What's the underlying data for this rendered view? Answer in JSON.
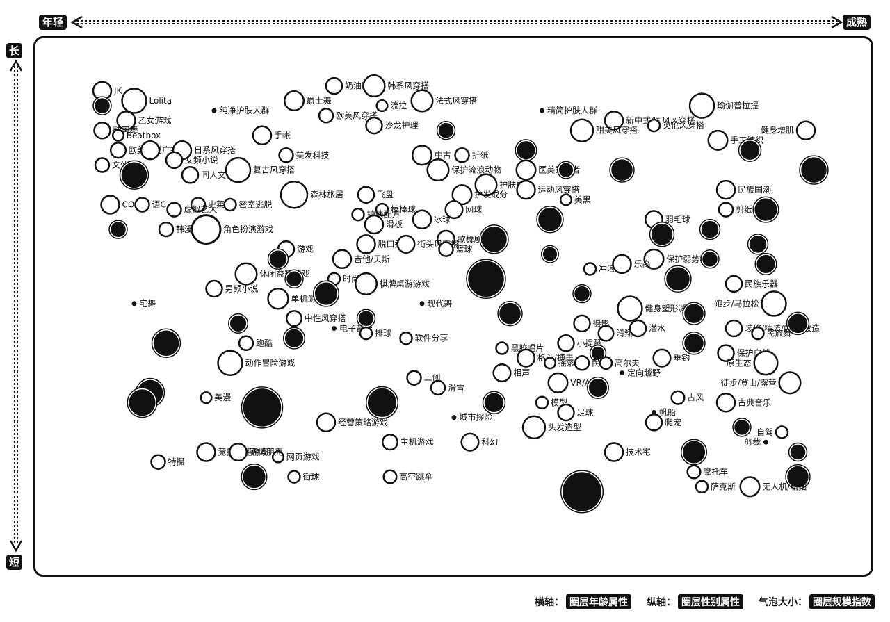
{
  "axes": {
    "x_start": "年轻",
    "x_end": "成熟",
    "y_start": "长",
    "y_end": "短"
  },
  "legend": {
    "x_key": "横轴：",
    "x_value": "圈层年龄属性",
    "y_key": "纵轴：",
    "y_value": "圈层性别属性",
    "size_key": "气泡大小：",
    "size_value": "圈层规模指数"
  },
  "colors": {
    "ink": "#111111",
    "background": "#ffffff"
  },
  "chart_data": {
    "type": "scatter",
    "title": "",
    "xlabel": "",
    "ylabel": "",
    "xlim": [
      0,
      100
    ],
    "ylim": [
      0,
      100
    ],
    "grid": false,
    "legend_position": "bottom-right",
    "points": [
      {
        "label": "JK",
        "x": 6,
        "y": 94,
        "size": 1.2
      },
      {
        "label": "Lolita",
        "x": 10,
        "y": 92,
        "size": 1.8
      },
      {
        "label": "",
        "x": 6,
        "y": 91,
        "size": 1,
        "dark": true
      },
      {
        "label": "乙女游戏",
        "x": 9,
        "y": 88,
        "size": 1.2
      },
      {
        "label": "韩国舞",
        "x": 6,
        "y": 86,
        "size": 1
      },
      {
        "label": "Beatbox",
        "x": 8,
        "y": 85,
        "size": 0.5
      },
      {
        "label": "欧美小说",
        "x": 8,
        "y": 82,
        "size": 0.9
      },
      {
        "label": "广播剧",
        "x": 12,
        "y": 82,
        "size": 1.2
      },
      {
        "label": "日系风穿搭",
        "x": 16,
        "y": 82,
        "size": 1.2
      },
      {
        "label": "文件",
        "x": 6,
        "y": 79,
        "size": 0.8
      },
      {
        "label": "女频小说",
        "x": 15,
        "y": 80,
        "size": 1
      },
      {
        "label": "",
        "x": 10,
        "y": 77,
        "size": 2,
        "dark": true
      },
      {
        "label": "同人文化",
        "x": 17,
        "y": 77,
        "size": 1
      },
      {
        "label": "复古风穿搭",
        "x": 23,
        "y": 78,
        "size": 1.8
      },
      {
        "label": "COS",
        "x": 7,
        "y": 71,
        "size": 1.2
      },
      {
        "label": "语C",
        "x": 11,
        "y": 71,
        "size": 0.8
      },
      {
        "label": "史莱姆",
        "x": 18,
        "y": 71,
        "size": 0.8
      },
      {
        "label": "密室逃脱",
        "x": 22,
        "y": 71,
        "size": 0.6
      },
      {
        "label": "虚拟艺人",
        "x": 15,
        "y": 70,
        "size": 0.8
      },
      {
        "label": "",
        "x": 8,
        "y": 66,
        "size": 1,
        "dark": true
      },
      {
        "label": "韩漫",
        "x": 14,
        "y": 66,
        "size": 0.8
      },
      {
        "label": "角色扮演游戏",
        "x": 19,
        "y": 66,
        "size": 2.2
      },
      {
        "label": "纯净护肤人群",
        "x": 20,
        "y": 90,
        "size": 0.4
      },
      {
        "label": "爵士舞",
        "x": 30,
        "y": 92,
        "size": 1.3
      },
      {
        "label": "奶油胶",
        "x": 35,
        "y": 95,
        "size": 1
      },
      {
        "label": "韩系风穿搭",
        "x": 40,
        "y": 95,
        "size": 1.5
      },
      {
        "label": "欧美风穿搭",
        "x": 34,
        "y": 89,
        "size": 0.8
      },
      {
        "label": "流拉",
        "x": 41,
        "y": 91,
        "size": 0.5
      },
      {
        "label": "法式风穿搭",
        "x": 46,
        "y": 92,
        "size": 1.5
      },
      {
        "label": "手帐",
        "x": 26,
        "y": 85,
        "size": 1.2
      },
      {
        "label": "沙龙护理",
        "x": 40,
        "y": 87,
        "size": 1
      },
      {
        "label": "",
        "x": 49,
        "y": 86,
        "size": 1,
        "dark": true
      },
      {
        "label": "美发科技",
        "x": 29,
        "y": 81,
        "size": 0.8
      },
      {
        "label": "中古",
        "x": 46,
        "y": 81,
        "size": 1.3
      },
      {
        "label": "折纸",
        "x": 51,
        "y": 81,
        "size": 0.8
      },
      {
        "label": "保护流浪动物",
        "x": 48,
        "y": 78,
        "size": 1.5
      },
      {
        "label": "护肤成分",
        "x": 54,
        "y": 75,
        "size": 1.5
      },
      {
        "label": "飞盘",
        "x": 39,
        "y": 73,
        "size": 1
      },
      {
        "label": "森林旅居",
        "x": 30,
        "y": 73,
        "size": 2
      },
      {
        "label": "护发成分",
        "x": 51,
        "y": 73,
        "size": 1.3
      },
      {
        "label": "棒棒球",
        "x": 41,
        "y": 70,
        "size": 0.6
      },
      {
        "label": "网球",
        "x": 50,
        "y": 70,
        "size": 1.1
      },
      {
        "label": "护肤配方",
        "x": 38,
        "y": 69,
        "size": 0.6
      },
      {
        "label": "冰球",
        "x": 46,
        "y": 68,
        "size": 1.2
      },
      {
        "label": "滑板",
        "x": 40,
        "y": 67,
        "size": 1.2
      },
      {
        "label": "",
        "x": 55,
        "y": 64,
        "size": 2,
        "dark": true
      },
      {
        "label": "歌舞剧",
        "x": 49,
        "y": 64,
        "size": 1.1
      },
      {
        "label": "游戏",
        "x": 29,
        "y": 62,
        "size": 1
      },
      {
        "label": "",
        "x": 28,
        "y": 60,
        "size": 1.2,
        "dark": true
      },
      {
        "label": "脱口秀",
        "x": 39,
        "y": 63,
        "size": 1.2
      },
      {
        "label": "街头风穿搭",
        "x": 44,
        "y": 63,
        "size": 1.1
      },
      {
        "label": "篮球",
        "x": 49,
        "y": 62,
        "size": 0.8
      },
      {
        "label": "吉他/贝斯",
        "x": 36,
        "y": 60,
        "size": 1.2
      },
      {
        "label": "休闲益智游戏",
        "x": 24,
        "y": 57,
        "size": 1.5
      },
      {
        "label": "",
        "x": 30,
        "y": 56,
        "size": 1,
        "dark": true
      },
      {
        "label": "时尚",
        "x": 35,
        "y": 56,
        "size": 0.6
      },
      {
        "label": "男频小说",
        "x": 20,
        "y": 54,
        "size": 1
      },
      {
        "label": "棋牌桌游游戏",
        "x": 39,
        "y": 55,
        "size": 1.5
      },
      {
        "label": "",
        "x": 54,
        "y": 56,
        "size": 3,
        "dark": true
      },
      {
        "label": "宅舞",
        "x": 10,
        "y": 51,
        "size": 0.4
      },
      {
        "label": "单机游戏",
        "x": 28,
        "y": 52,
        "size": 1.4
      },
      {
        "label": "",
        "x": 34,
        "y": 53,
        "size": 1.7,
        "dark": true
      },
      {
        "label": "现代舞",
        "x": 46,
        "y": 51,
        "size": 0.4
      },
      {
        "label": "中性风穿搭",
        "x": 30,
        "y": 48,
        "size": 0.9
      },
      {
        "label": "",
        "x": 39,
        "y": 48,
        "size": 1,
        "dark": true
      },
      {
        "label": "",
        "x": 23,
        "y": 47,
        "size": 1.1,
        "dark": true
      },
      {
        "label": "电子音乐",
        "x": 35,
        "y": 46,
        "size": 0.4
      },
      {
        "label": "排球",
        "x": 39,
        "y": 45,
        "size": 0.6
      },
      {
        "label": "软件分享",
        "x": 44,
        "y": 44,
        "size": 0.6
      },
      {
        "label": "",
        "x": 30,
        "y": 44,
        "size": 1.3,
        "dark": true
      },
      {
        "label": "",
        "x": 14,
        "y": 43,
        "size": 2,
        "dark": true
      },
      {
        "label": "跑酷",
        "x": 24,
        "y": 43,
        "size": 0.8
      },
      {
        "label": "动作冒险游戏",
        "x": 22,
        "y": 39,
        "size": 1.8
      },
      {
        "label": "",
        "x": 12,
        "y": 33,
        "size": 2,
        "dark": true
      },
      {
        "label": "二创",
        "x": 45,
        "y": 36,
        "size": 0.8
      },
      {
        "label": "滑雪",
        "x": 48,
        "y": 34,
        "size": 0.8
      },
      {
        "label": "美漫",
        "x": 19,
        "y": 32,
        "size": 0.5
      },
      {
        "label": "",
        "x": 26,
        "y": 30,
        "size": 3.2,
        "dark": true
      },
      {
        "label": "",
        "x": 41,
        "y": 31,
        "size": 2.3,
        "dark": true
      },
      {
        "label": "经营策略游戏",
        "x": 34,
        "y": 27,
        "size": 1.2
      },
      {
        "label": "城市探险",
        "x": 50,
        "y": 28,
        "size": 0.4
      },
      {
        "label": "主机游戏",
        "x": 42,
        "y": 23,
        "size": 0.9
      },
      {
        "label": "科幻",
        "x": 52,
        "y": 23,
        "size": 1.1
      },
      {
        "label": "竞技竞速游戏",
        "x": 19,
        "y": 21,
        "size": 1.2
      },
      {
        "label": "网页游戏",
        "x": 28,
        "y": 20,
        "size": 0.5
      },
      {
        "label": "赛博朋克",
        "x": 23,
        "y": 21,
        "size": 1.1
      },
      {
        "label": "特摄",
        "x": 13,
        "y": 19,
        "size": 0.8
      },
      {
        "label": "",
        "x": 25,
        "y": 16,
        "size": 1.7,
        "dark": true
      },
      {
        "label": "街球",
        "x": 30,
        "y": 16,
        "size": 0.6
      },
      {
        "label": "高空跳伞",
        "x": 42,
        "y": 16,
        "size": 0.7
      },
      {
        "label": "精简护肤人群",
        "x": 61,
        "y": 90,
        "size": 0.1
      },
      {
        "label": "新中式/国风风穿搭",
        "x": 70,
        "y": 88,
        "size": 1.2
      },
      {
        "label": "甜美风穿搭",
        "x": 66,
        "y": 86,
        "size": 1.6
      },
      {
        "label": "英伦风穿搭",
        "x": 75,
        "y": 87,
        "size": 0.6
      },
      {
        "label": "",
        "x": 59,
        "y": 82,
        "size": 1.3,
        "dark": true
      },
      {
        "label": "医美爱好者",
        "x": 59,
        "y": 78,
        "size": 1.3
      },
      {
        "label": "",
        "x": 64,
        "y": 78,
        "size": 0.9,
        "dark": true
      },
      {
        "label": "",
        "x": 71,
        "y": 78,
        "size": 1.6,
        "dark": true
      },
      {
        "label": "运动风穿搭",
        "x": 59,
        "y": 74,
        "size": 1.2
      },
      {
        "label": "美黑",
        "x": 64,
        "y": 72,
        "size": 0.5
      },
      {
        "label": "",
        "x": 62,
        "y": 68,
        "size": 1.8,
        "dark": true
      },
      {
        "label": "",
        "x": 62,
        "y": 61,
        "size": 0.9,
        "dark": true
      },
      {
        "label": "冲浪",
        "x": 67,
        "y": 58,
        "size": 0.6
      },
      {
        "label": "",
        "x": 66,
        "y": 53,
        "size": 1,
        "dark": true
      },
      {
        "label": "",
        "x": 57,
        "y": 49,
        "size": 1.6,
        "dark": true
      },
      {
        "label": "摄影",
        "x": 66,
        "y": 47,
        "size": 1
      },
      {
        "label": "健身塑形减脂",
        "x": 72,
        "y": 50,
        "size": 1.8
      },
      {
        "label": "滑翔",
        "x": 69,
        "y": 45,
        "size": 0.9
      },
      {
        "label": "黑胶唱片",
        "x": 56,
        "y": 42,
        "size": 0.6
      },
      {
        "label": "小提琴",
        "x": 64,
        "y": 43,
        "size": 1
      },
      {
        "label": "",
        "x": 68,
        "y": 41,
        "size": 0.8,
        "dark": true
      },
      {
        "label": "格斗/搏击",
        "x": 59,
        "y": 40,
        "size": 1.1
      },
      {
        "label": "摇滚",
        "x": 62,
        "y": 39,
        "size": 0.5
      },
      {
        "label": "民谣",
        "x": 66,
        "y": 39,
        "size": 0.8
      },
      {
        "label": "高尔夫",
        "x": 69,
        "y": 39,
        "size": 0.6
      },
      {
        "label": "相声",
        "x": 56,
        "y": 37,
        "size": 1.1
      },
      {
        "label": "定向越野",
        "x": 71,
        "y": 37,
        "size": 0.3
      },
      {
        "label": "VR/AR",
        "x": 63,
        "y": 35,
        "size": 1.3
      },
      {
        "label": "",
        "x": 68,
        "y": 34,
        "size": 1.3,
        "dark": true
      },
      {
        "label": "",
        "x": 55,
        "y": 31,
        "size": 1.4,
        "dark": true
      },
      {
        "label": "模型",
        "x": 61,
        "y": 31,
        "size": 0.6
      },
      {
        "label": "足球",
        "x": 64,
        "y": 29,
        "size": 1
      },
      {
        "label": "头发造型",
        "x": 60,
        "y": 26,
        "size": 1.6
      },
      {
        "label": "技术宅",
        "x": 70,
        "y": 21,
        "size": 1.2
      },
      {
        "label": "",
        "x": 66,
        "y": 13,
        "size": 3.3,
        "dark": true
      },
      {
        "label": "瑜伽普拉提",
        "x": 81,
        "y": 91,
        "size": 1.8
      },
      {
        "label": "手工编织",
        "x": 83,
        "y": 84,
        "size": 1.3
      },
      {
        "label": "健身增肌",
        "x": 94,
        "y": 86,
        "size": 1.2
      },
      {
        "label": "",
        "x": 87,
        "y": 82,
        "size": 1.4,
        "dark": true
      },
      {
        "label": "",
        "x": 95,
        "y": 78,
        "size": 2,
        "dark": true
      },
      {
        "label": "民族国潮",
        "x": 84,
        "y": 74,
        "size": 1.2
      },
      {
        "label": "剪纸",
        "x": 84,
        "y": 70,
        "size": 0.8
      },
      {
        "label": "",
        "x": 89,
        "y": 70,
        "size": 1.7,
        "dark": true
      },
      {
        "label": "羽毛球",
        "x": 75,
        "y": 68,
        "size": 1.1
      },
      {
        "label": "",
        "x": 82,
        "y": 66,
        "size": 1.2,
        "dark": true
      },
      {
        "label": "",
        "x": 76,
        "y": 65,
        "size": 1.6,
        "dark": true
      },
      {
        "label": "",
        "x": 88,
        "y": 63,
        "size": 1.2,
        "dark": true
      },
      {
        "label": "保护弱势群体",
        "x": 75,
        "y": 60,
        "size": 1.3
      },
      {
        "label": "乐高",
        "x": 71,
        "y": 59,
        "size": 1.2
      },
      {
        "label": "",
        "x": 82,
        "y": 60,
        "size": 1,
        "dark": true
      },
      {
        "label": "",
        "x": 89,
        "y": 59,
        "size": 1.3,
        "dark": true
      },
      {
        "label": "",
        "x": 78,
        "y": 56,
        "size": 1.8,
        "dark": true
      },
      {
        "label": "民族乐器",
        "x": 85,
        "y": 55,
        "size": 1
      },
      {
        "label": "跑步/马拉松",
        "x": 90,
        "y": 51,
        "size": 1.8
      },
      {
        "label": "",
        "x": 80,
        "y": 49,
        "size": 1.4,
        "dark": true
      },
      {
        "label": "装修/精装/内饰/改造",
        "x": 85,
        "y": 46,
        "size": 1
      },
      {
        "label": "",
        "x": 93,
        "y": 47,
        "size": 1.4,
        "dark": true
      },
      {
        "label": "潜水",
        "x": 73,
        "y": 46,
        "size": 1
      },
      {
        "label": "民族舞",
        "x": 88,
        "y": 45,
        "size": 0.6
      },
      {
        "label": "",
        "x": 80,
        "y": 43,
        "size": 1.4,
        "dark": true
      },
      {
        "label": "保护自然",
        "x": 84,
        "y": 41,
        "size": 1
      },
      {
        "label": "垂钓",
        "x": 76,
        "y": 40,
        "size": 1.1
      },
      {
        "label": "原生态",
        "x": 89,
        "y": 39,
        "size": 1.7
      },
      {
        "label": "徒步/登山/露营",
        "x": 92,
        "y": 35,
        "size": 1.5
      },
      {
        "label": "",
        "x": 11,
        "y": 31,
        "size": 2.1,
        "dark": true
      },
      {
        "label": "古风",
        "x": 78,
        "y": 32,
        "size": 0.7
      },
      {
        "label": "古典音乐",
        "x": 84,
        "y": 31,
        "size": 1.2
      },
      {
        "label": "帆船",
        "x": 75,
        "y": 29,
        "size": 0.4
      },
      {
        "label": "爬宠",
        "x": 75,
        "y": 27,
        "size": 1
      },
      {
        "label": "",
        "x": 86,
        "y": 26,
        "size": 1,
        "dark": true
      },
      {
        "label": "自驾",
        "x": 91,
        "y": 25,
        "size": 0.6
      },
      {
        "label": "剪裁",
        "x": 89,
        "y": 23,
        "size": 0.3
      },
      {
        "label": "",
        "x": 80,
        "y": 21,
        "size": 1.7,
        "dark": true
      },
      {
        "label": "",
        "x": 93,
        "y": 21,
        "size": 1,
        "dark": true
      },
      {
        "label": "摩托车",
        "x": 80,
        "y": 17,
        "size": 0.7
      },
      {
        "label": "",
        "x": 93,
        "y": 16,
        "size": 1.6,
        "dark": true
      },
      {
        "label": "萨克斯",
        "x": 81,
        "y": 14,
        "size": 0.6
      },
      {
        "label": "无人机/航拍",
        "x": 87,
        "y": 14,
        "size": 1.3
      }
    ]
  }
}
